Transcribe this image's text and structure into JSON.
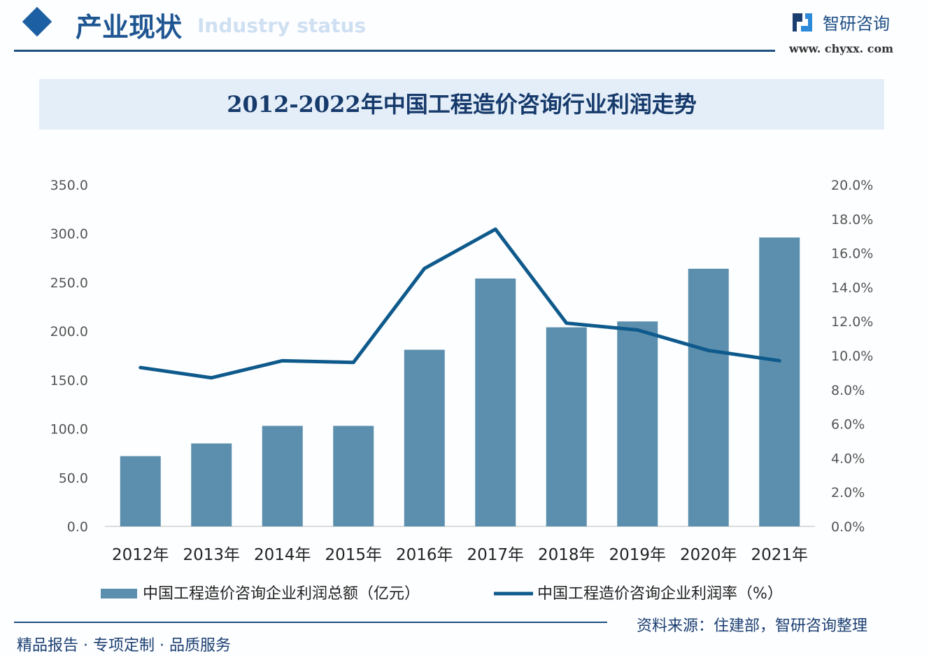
{
  "header": {
    "section_title": "产业现状",
    "section_subtitle": "Industry status",
    "brand": "智研咨询",
    "url": "www. chyxx. com"
  },
  "colors": {
    "bar": "#5b8fad",
    "line": "#0f5a8c",
    "accent": "#1c5fa3"
  },
  "chart_data": {
    "type": "bar+line",
    "title": "2012-2022年中国工程造价咨询行业利润走势",
    "categories": [
      "2012年",
      "2013年",
      "2014年",
      "2015年",
      "2016年",
      "2017年",
      "2018年",
      "2019年",
      "2020年",
      "2021年"
    ],
    "series": [
      {
        "name": "中国工程造价咨询企业利润总额（亿元）",
        "type": "bar",
        "axis": "left",
        "values": [
          72,
          85,
          103,
          103,
          181,
          254,
          204,
          210,
          264,
          296
        ]
      },
      {
        "name": "中国工程造价咨询企业利润率（%）",
        "type": "line",
        "axis": "right",
        "values": [
          9.3,
          8.7,
          9.7,
          9.6,
          15.1,
          17.4,
          11.9,
          11.5,
          10.3,
          9.7
        ]
      }
    ],
    "y_left": {
      "ylim": [
        0,
        350
      ],
      "ticks": [
        "0.0",
        "50.0",
        "100.0",
        "150.0",
        "200.0",
        "250.0",
        "300.0",
        "350.0"
      ]
    },
    "y_right": {
      "ylim": [
        0,
        20
      ],
      "ticks": [
        "0.0%",
        "2.0%",
        "4.0%",
        "6.0%",
        "8.0%",
        "10.0%",
        "12.0%",
        "14.0%",
        "16.0%",
        "18.0%",
        "20.0%"
      ]
    },
    "grid": false,
    "legend": "bottom"
  },
  "footer": {
    "source": "资料来源：住建部，智研咨询整理",
    "slogan": "精品报告 · 专项定制 · 品质服务"
  }
}
